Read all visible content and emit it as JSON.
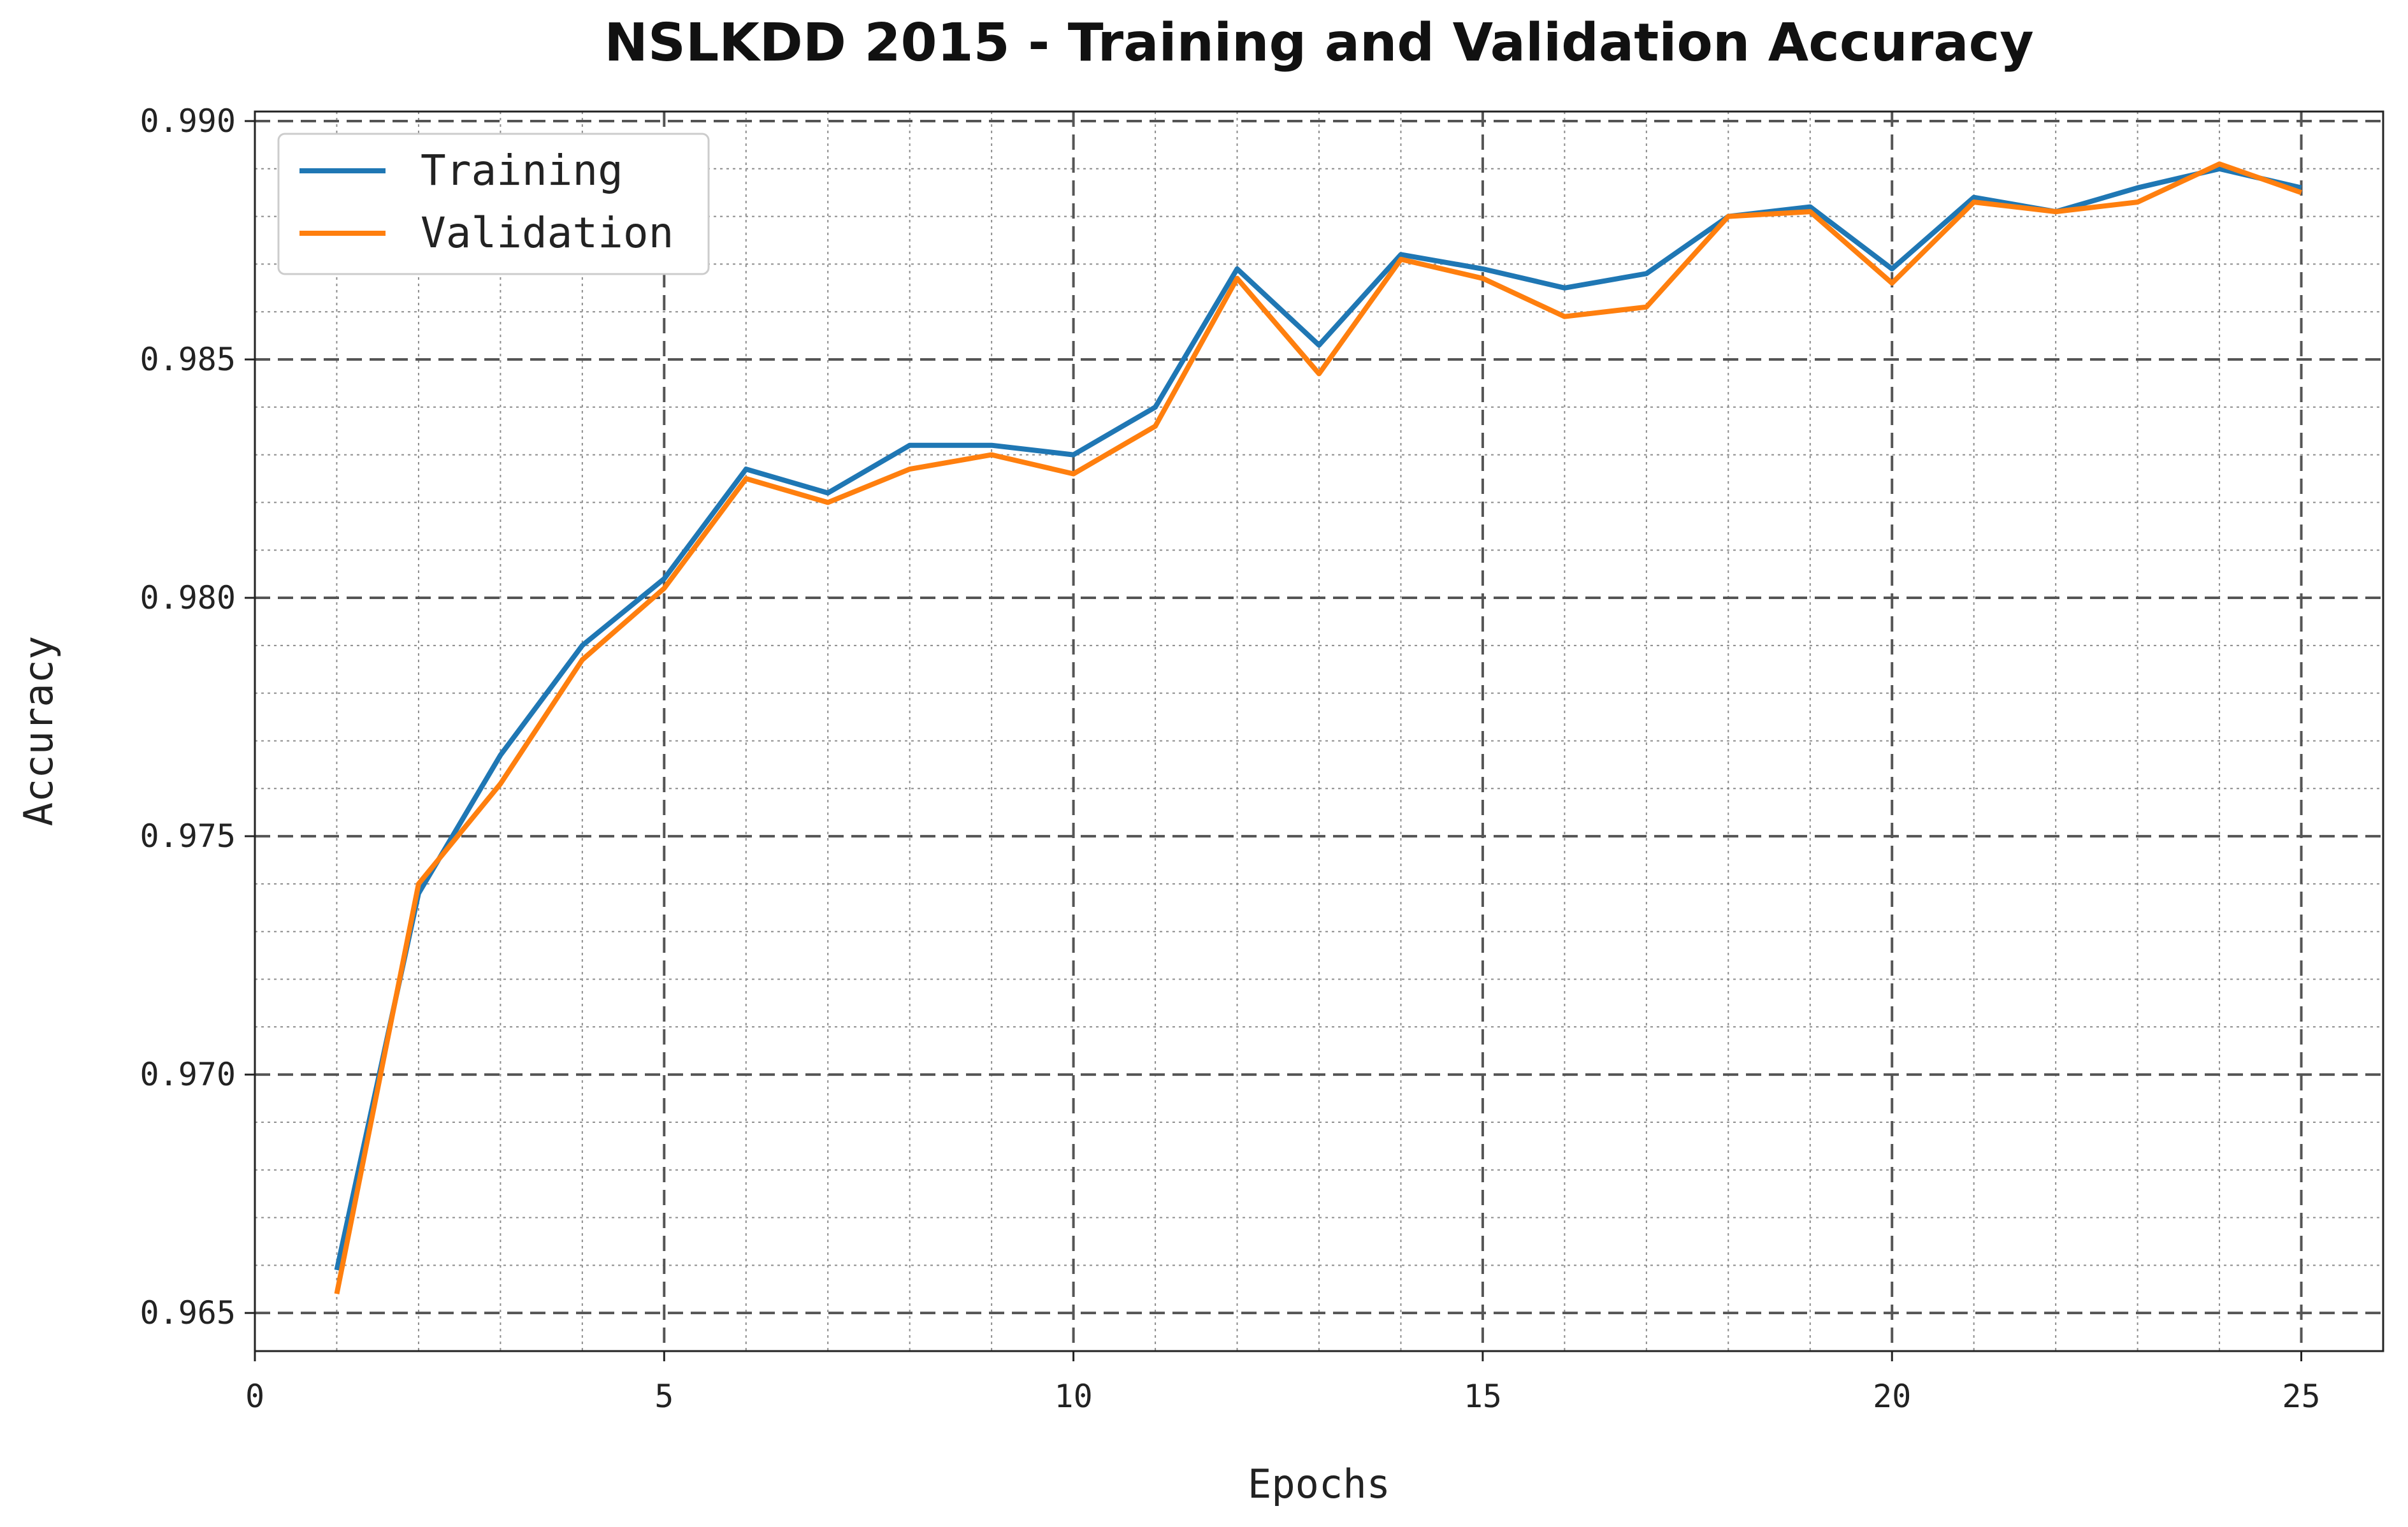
{
  "chart_data": {
    "type": "line",
    "title": "NSLKDD 2015 - Training and Validation Accuracy",
    "xlabel": "Epochs",
    "ylabel": "Accuracy",
    "xlim": [
      0,
      26
    ],
    "ylim": [
      0.9642,
      0.9902
    ],
    "x_ticks": [
      0,
      5,
      10,
      15,
      20,
      25
    ],
    "x_tick_labels": [
      "0",
      "5",
      "10",
      "15",
      "20",
      "25"
    ],
    "y_ticks": [
      0.965,
      0.97,
      0.975,
      0.98,
      0.985,
      0.99
    ],
    "y_tick_labels": [
      "0.965",
      "0.970",
      "0.975",
      "0.980",
      "0.985",
      "0.990"
    ],
    "grid": true,
    "legend_position": "top-left",
    "x": [
      1,
      2,
      3,
      4,
      5,
      6,
      7,
      8,
      9,
      10,
      11,
      12,
      13,
      14,
      15,
      16,
      17,
      18,
      19,
      20,
      21,
      22,
      23,
      24,
      25
    ],
    "series": [
      {
        "name": "Training",
        "color": "#1f77b4",
        "values": [
          0.9659,
          0.9738,
          0.9767,
          0.979,
          0.9804,
          0.9827,
          0.9822,
          0.9832,
          0.9832,
          0.983,
          0.984,
          0.9869,
          0.9853,
          0.9872,
          0.9869,
          0.9865,
          0.9868,
          0.988,
          0.9882,
          0.9869,
          0.9884,
          0.9881,
          0.9886,
          0.989,
          0.9886
        ]
      },
      {
        "name": "Validation",
        "color": "#ff7f0e",
        "values": [
          0.9654,
          0.974,
          0.9761,
          0.9787,
          0.9802,
          0.9825,
          0.982,
          0.9827,
          0.983,
          0.9826,
          0.9836,
          0.9867,
          0.9847,
          0.9871,
          0.9867,
          0.9859,
          0.9861,
          0.988,
          0.9881,
          0.9866,
          0.9883,
          0.9881,
          0.9883,
          0.9891,
          0.9885
        ]
      }
    ]
  }
}
